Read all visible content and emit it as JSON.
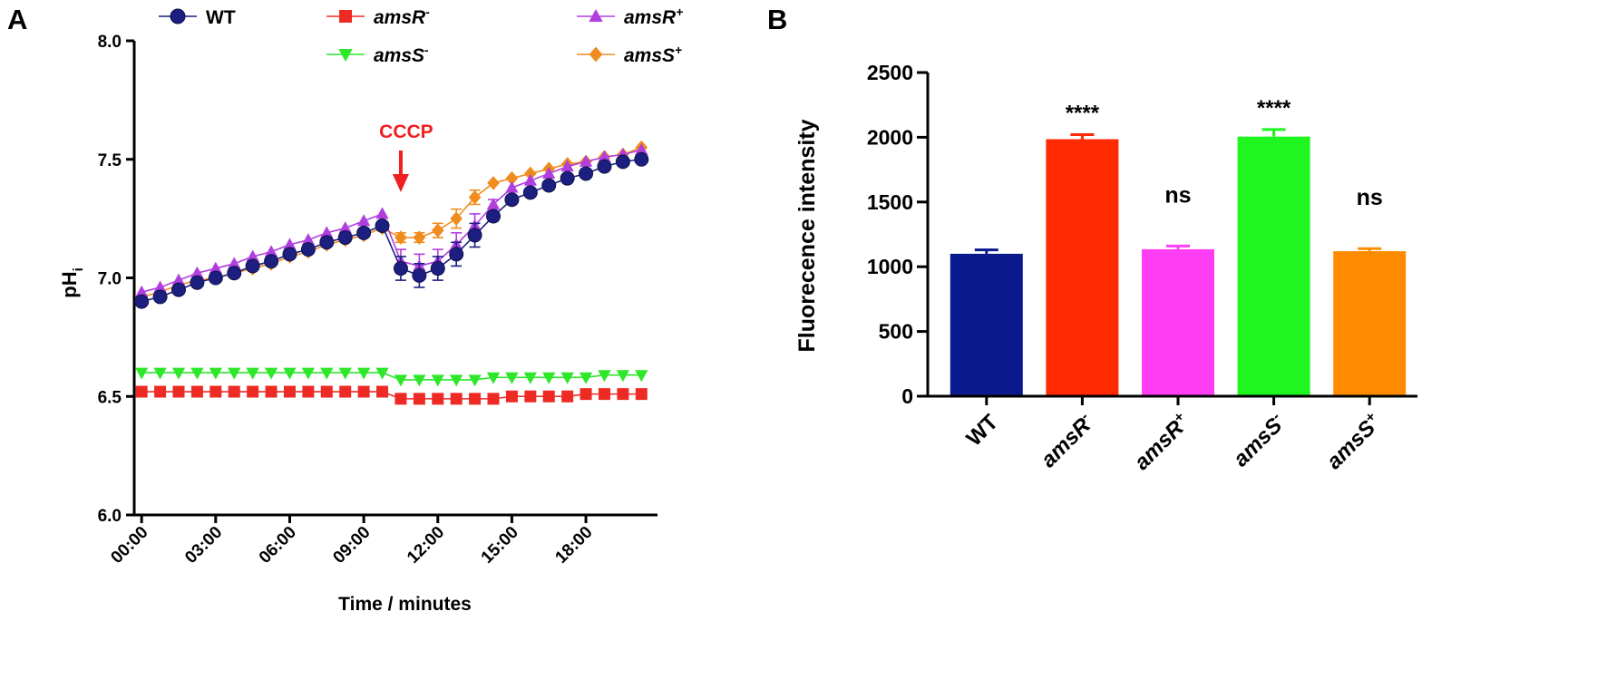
{
  "panels": {
    "a": "A",
    "b": "B"
  },
  "chart_data": [
    {
      "type": "line",
      "panel": "A",
      "xlabel": "Time / minutes",
      "ylabel_main": "pH",
      "ylabel_sub": "i",
      "ylim": [
        6.0,
        8.0
      ],
      "yticks": [
        6.0,
        6.5,
        7.0,
        7.5,
        8.0
      ],
      "ytick_labels": [
        "6.0",
        "6.5",
        "7.0",
        "7.5",
        "8.0"
      ],
      "xlim": [
        -0.3,
        20.9
      ],
      "xticks": [
        0,
        3,
        6,
        9,
        12,
        15,
        18
      ],
      "xtick_labels": [
        "00:00",
        "03:00",
        "06:00",
        "09:00",
        "12:00",
        "15:00",
        "18:00"
      ],
      "annotation": {
        "text": "CCCP",
        "x": 10.5,
        "color": "#ee2020"
      },
      "legend_position": "top",
      "x": [
        0,
        0.75,
        1.5,
        2.25,
        3,
        3.75,
        4.5,
        5.25,
        6,
        6.75,
        7.5,
        8.25,
        9,
        9.75,
        10.5,
        11.25,
        12,
        12.75,
        13.5,
        14.25,
        15,
        15.75,
        16.5,
        17.25,
        18,
        18.75,
        19.5,
        20.25
      ],
      "series": [
        {
          "name": "WT",
          "base": "WT",
          "sup": "",
          "italic": false,
          "color": "#1c1f80",
          "marker": "circle",
          "values": [
            6.9,
            6.92,
            6.95,
            6.98,
            7.0,
            7.02,
            7.05,
            7.07,
            7.1,
            7.12,
            7.15,
            7.17,
            7.19,
            7.22,
            7.04,
            7.01,
            7.04,
            7.1,
            7.18,
            7.26,
            7.33,
            7.36,
            7.39,
            7.42,
            7.44,
            7.47,
            7.49,
            7.5
          ],
          "errors": [
            0,
            0,
            0,
            0,
            0,
            0,
            0,
            0,
            0,
            0,
            0,
            0,
            0,
            0,
            0.05,
            0.05,
            0.05,
            0.05,
            0.05,
            0.02,
            0,
            0,
            0,
            0,
            0,
            0,
            0,
            0
          ]
        },
        {
          "name": "amsR-",
          "base": "amsR",
          "sup": "-",
          "italic": true,
          "color": "#ee2a24",
          "marker": "square",
          "values": [
            6.52,
            6.52,
            6.52,
            6.52,
            6.52,
            6.52,
            6.52,
            6.52,
            6.52,
            6.52,
            6.52,
            6.52,
            6.52,
            6.52,
            6.49,
            6.49,
            6.49,
            6.49,
            6.49,
            6.49,
            6.5,
            6.5,
            6.5,
            6.5,
            6.51,
            6.51,
            6.51,
            6.51
          ],
          "errors": []
        },
        {
          "name": "amsR+",
          "base": "amsR",
          "sup": "+",
          "italic": true,
          "color": "#b13fe0",
          "marker": "triangle-up",
          "values": [
            6.94,
            6.96,
            6.99,
            7.02,
            7.04,
            7.06,
            7.09,
            7.11,
            7.14,
            7.16,
            7.19,
            7.21,
            7.24,
            7.27,
            7.07,
            7.05,
            7.07,
            7.14,
            7.22,
            7.31,
            7.38,
            7.41,
            7.44,
            7.47,
            7.49,
            7.51,
            7.52,
            7.54
          ],
          "errors": [
            0,
            0,
            0,
            0,
            0,
            0,
            0,
            0,
            0,
            0,
            0,
            0,
            0,
            0,
            0.05,
            0.05,
            0.05,
            0.05,
            0.05,
            0.02,
            0,
            0,
            0,
            0,
            0,
            0,
            0,
            0
          ]
        },
        {
          "name": "amsS-",
          "base": "amsS",
          "sup": "-",
          "italic": true,
          "color": "#2ee62a",
          "marker": "triangle-down",
          "values": [
            6.6,
            6.6,
            6.6,
            6.6,
            6.6,
            6.6,
            6.6,
            6.6,
            6.6,
            6.6,
            6.6,
            6.6,
            6.6,
            6.6,
            6.57,
            6.57,
            6.57,
            6.57,
            6.57,
            6.58,
            6.58,
            6.58,
            6.58,
            6.58,
            6.58,
            6.59,
            6.59,
            6.59
          ],
          "errors": []
        },
        {
          "name": "amsS+",
          "base": "amsS",
          "sup": "+",
          "italic": true,
          "color": "#f08c1e",
          "marker": "diamond",
          "values": [
            6.92,
            6.94,
            6.97,
            6.99,
            7.0,
            7.02,
            7.04,
            7.06,
            7.09,
            7.11,
            7.14,
            7.16,
            7.18,
            7.21,
            7.17,
            7.17,
            7.2,
            7.25,
            7.34,
            7.4,
            7.42,
            7.44,
            7.46,
            7.48,
            7.49,
            7.51,
            7.52,
            7.55
          ],
          "errors": [
            0,
            0,
            0,
            0,
            0,
            0,
            0,
            0,
            0,
            0,
            0,
            0,
            0,
            0,
            0.02,
            0.02,
            0.03,
            0.04,
            0.03,
            0,
            0,
            0,
            0,
            0,
            0,
            0,
            0,
            0
          ]
        }
      ]
    },
    {
      "type": "bar",
      "panel": "B",
      "ylabel": "Fluorecence intensity",
      "ylim": [
        0,
        2500
      ],
      "yticks": [
        0,
        500,
        1000,
        1500,
        2000,
        2500
      ],
      "ytick_labels": [
        "0",
        "500",
        "1000",
        "1500",
        "2000",
        "2500"
      ],
      "categories": [
        {
          "base": "WT",
          "sup": "",
          "italic": false
        },
        {
          "base": "amsR",
          "sup": "-",
          "italic": true
        },
        {
          "base": "amsR",
          "sup": "+",
          "italic": true
        },
        {
          "base": "amsS",
          "sup": "-",
          "italic": true
        },
        {
          "base": "amsS",
          "sup": "+",
          "italic": true
        }
      ],
      "values": [
        1100,
        1985,
        1135,
        2005,
        1120
      ],
      "errors": [
        30,
        35,
        25,
        55,
        20
      ],
      "colors": [
        "#0a1a8c",
        "#ff2a00",
        "#ff3df5",
        "#1ff51f",
        "#ff8c00"
      ],
      "significance": [
        "",
        "****",
        "ns",
        "****",
        "ns"
      ]
    }
  ]
}
